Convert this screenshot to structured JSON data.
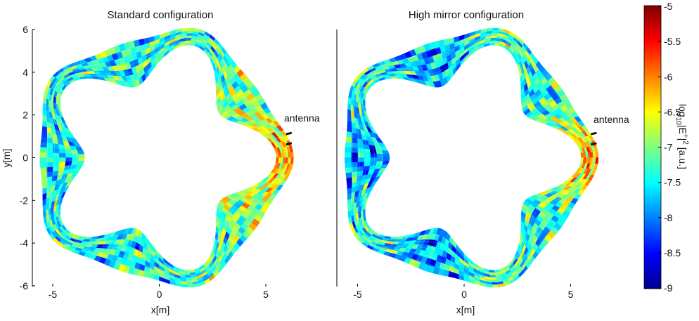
{
  "chart_data": [
    {
      "type": "heatmap",
      "title": "Standard configuration",
      "xlabel": "x[m]",
      "ylabel": "y[m]",
      "xlim": [
        -6,
        6.3
      ],
      "ylim": [
        -6.1,
        6.1
      ],
      "xticks": [
        -5,
        0,
        5
      ],
      "yticks": [
        6,
        4,
        2,
        0,
        -2,
        -4,
        -6
      ],
      "annotation": "antenna",
      "grid": false
    },
    {
      "type": "heatmap",
      "title": "High mirror configuration",
      "xlabel": "x[m]",
      "ylabel": "",
      "xlim": [
        -6,
        6.3
      ],
      "ylim": [
        -6.1,
        6.1
      ],
      "xticks": [
        -5,
        0,
        5
      ],
      "yticks": [],
      "annotation": "antenna",
      "grid": false
    }
  ],
  "colorbar": {
    "label": "log10|E+|2 [a.u.]",
    "label_parts": [
      "log",
      "10",
      "|E",
      "+",
      "|",
      "2",
      " [a.u.]"
    ],
    "range": [
      -9,
      -5
    ],
    "ticks": [
      "-5",
      "-5.5",
      "-6",
      "-6.5",
      "-7",
      "-7.5",
      "-8",
      "-8.5",
      "-9"
    ],
    "colormap": [
      "#00008f",
      "#0000ff",
      "#00ffff",
      "#ffff00",
      "#ff0000",
      "#800000"
    ]
  }
}
